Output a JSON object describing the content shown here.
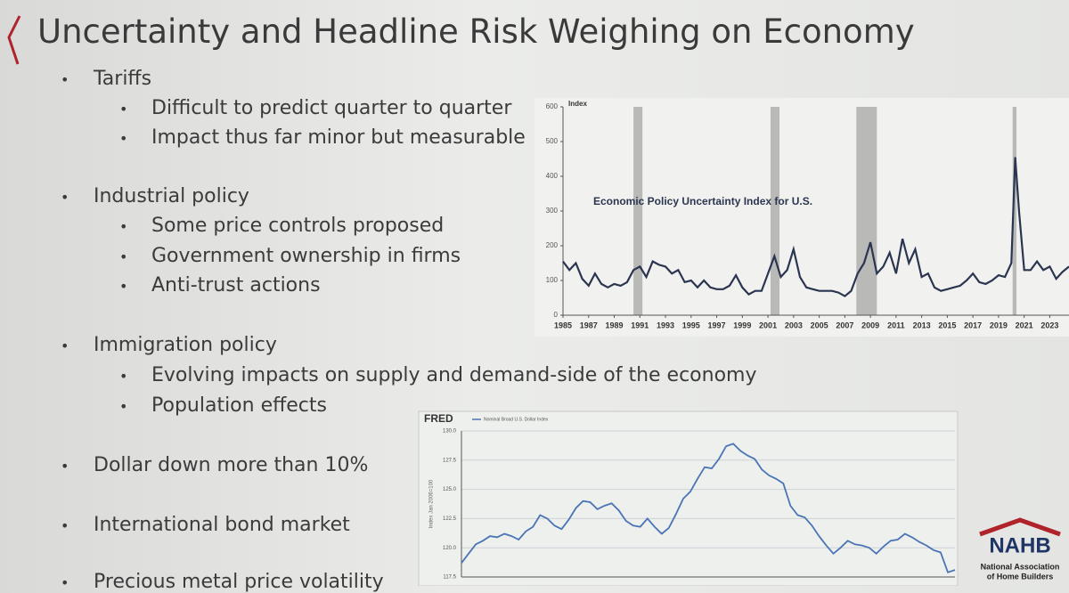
{
  "slide": {
    "title": "Uncertainty and Headline Risk Weighing on Economy",
    "bullets": [
      {
        "text": "Tariffs",
        "items": [
          "Difficult to predict quarter to quarter",
          "Impact thus far minor but measurable"
        ]
      },
      {
        "text": "Industrial policy",
        "items": [
          "Some price controls proposed",
          "Government ownership in firms",
          "Anti-trust actions"
        ]
      },
      {
        "text": "Immigration policy",
        "items": [
          "Evolving impacts on supply and demand-side of the economy",
          "Population effects"
        ]
      },
      {
        "text": "Dollar down more than 10%"
      },
      {
        "text": "International bond market"
      },
      {
        "text": "Precious metal price volatility"
      }
    ]
  },
  "logo": {
    "name": "NAHB",
    "line1": "National Association",
    "line2": "of Home Builders"
  },
  "chart_data": [
    {
      "type": "line",
      "title": "Economic Policy Uncertainty Index for U.S.",
      "ylabel": "Index",
      "color": "#2b3550",
      "x": [
        1985.0,
        1985.5,
        1986.0,
        1986.5,
        1987.0,
        1987.5,
        1988.0,
        1988.5,
        1989.0,
        1989.5,
        1990.0,
        1990.5,
        1991.0,
        1991.5,
        1992.0,
        1992.5,
        1993.0,
        1993.5,
        1994.0,
        1994.5,
        1995.0,
        1995.5,
        1996.0,
        1996.5,
        1997.0,
        1997.5,
        1998.0,
        1998.5,
        1999.0,
        1999.5,
        2000.0,
        2000.5,
        2001.0,
        2001.5,
        2002.0,
        2002.5,
        2003.0,
        2003.5,
        2004.0,
        2004.5,
        2005.0,
        2005.5,
        2006.0,
        2006.5,
        2007.0,
        2007.5,
        2008.0,
        2008.5,
        2009.0,
        2009.5,
        2010.0,
        2010.5,
        2011.0,
        2011.5,
        2012.0,
        2012.5,
        2013.0,
        2013.5,
        2014.0,
        2014.5,
        2015.0,
        2015.5,
        2016.0,
        2016.5,
        2017.0,
        2017.5,
        2018.0,
        2018.5,
        2019.0,
        2019.5,
        2020.0,
        2020.3,
        2020.6,
        2021.0,
        2021.5,
        2022.0,
        2022.5,
        2023.0,
        2023.5,
        2024.0,
        2024.5
      ],
      "values": [
        155,
        130,
        150,
        105,
        85,
        120,
        90,
        80,
        90,
        85,
        95,
        130,
        140,
        110,
        155,
        145,
        140,
        120,
        130,
        95,
        100,
        80,
        100,
        80,
        75,
        75,
        85,
        115,
        80,
        60,
        70,
        70,
        120,
        170,
        110,
        130,
        190,
        110,
        80,
        75,
        70,
        70,
        70,
        65,
        55,
        70,
        120,
        150,
        210,
        120,
        140,
        180,
        120,
        220,
        150,
        190,
        110,
        120,
        80,
        70,
        75,
        80,
        85,
        100,
        120,
        95,
        90,
        100,
        115,
        110,
        150,
        455,
        300,
        130,
        130,
        155,
        130,
        140,
        105,
        125,
        140
      ],
      "recessions": [
        [
          1990.5,
          1991.2
        ],
        [
          2001.2,
          2001.9
        ],
        [
          2007.9,
          2009.5
        ],
        [
          2020.1,
          2020.4
        ]
      ],
      "xlim": [
        1985,
        2024.5
      ],
      "ylim": [
        0,
        600
      ],
      "yticks": [
        0,
        100,
        200,
        300,
        400,
        500,
        600
      ],
      "xticks": [
        1985,
        1987,
        1989,
        1991,
        1993,
        1995,
        1997,
        1999,
        2001,
        2003,
        2005,
        2007,
        2009,
        2011,
        2013,
        2015,
        2017,
        2019,
        2021,
        2023
      ]
    },
    {
      "type": "line",
      "source": "FRED",
      "ylabel": "Index Jan 2006=100",
      "series_name": "Nominal Broad U.S. Dollar Index",
      "color": "#4a74b5",
      "grid": true,
      "values": [
        118.7,
        119.5,
        120.3,
        120.6,
        121.0,
        120.9,
        121.2,
        121.0,
        120.7,
        121.4,
        121.8,
        122.8,
        122.5,
        121.9,
        121.6,
        122.4,
        123.4,
        124.0,
        123.9,
        123.3,
        123.6,
        123.8,
        123.2,
        122.3,
        121.9,
        121.8,
        122.5,
        121.8,
        121.2,
        121.7,
        122.9,
        124.2,
        124.8,
        125.9,
        126.9,
        126.8,
        127.6,
        128.7,
        128.9,
        128.3,
        127.9,
        127.6,
        126.7,
        126.2,
        125.9,
        125.5,
        123.6,
        122.8,
        122.6,
        121.9,
        121.0,
        120.2,
        119.5,
        120.0,
        120.6,
        120.3,
        120.2,
        120.0,
        119.5,
        120.1,
        120.6,
        120.7,
        121.2,
        120.9,
        120.5,
        120.2,
        119.8,
        119.6,
        117.9,
        118.1
      ],
      "ylim": [
        117.5,
        130
      ],
      "yticks": [
        117.5,
        {
          "value": 120,
          "label": "120.0"
        },
        122.5,
        {
          "value": 125,
          "label": "125.0"
        },
        127.5,
        {
          "value": 130,
          "label": "130.0"
        }
      ]
    }
  ]
}
